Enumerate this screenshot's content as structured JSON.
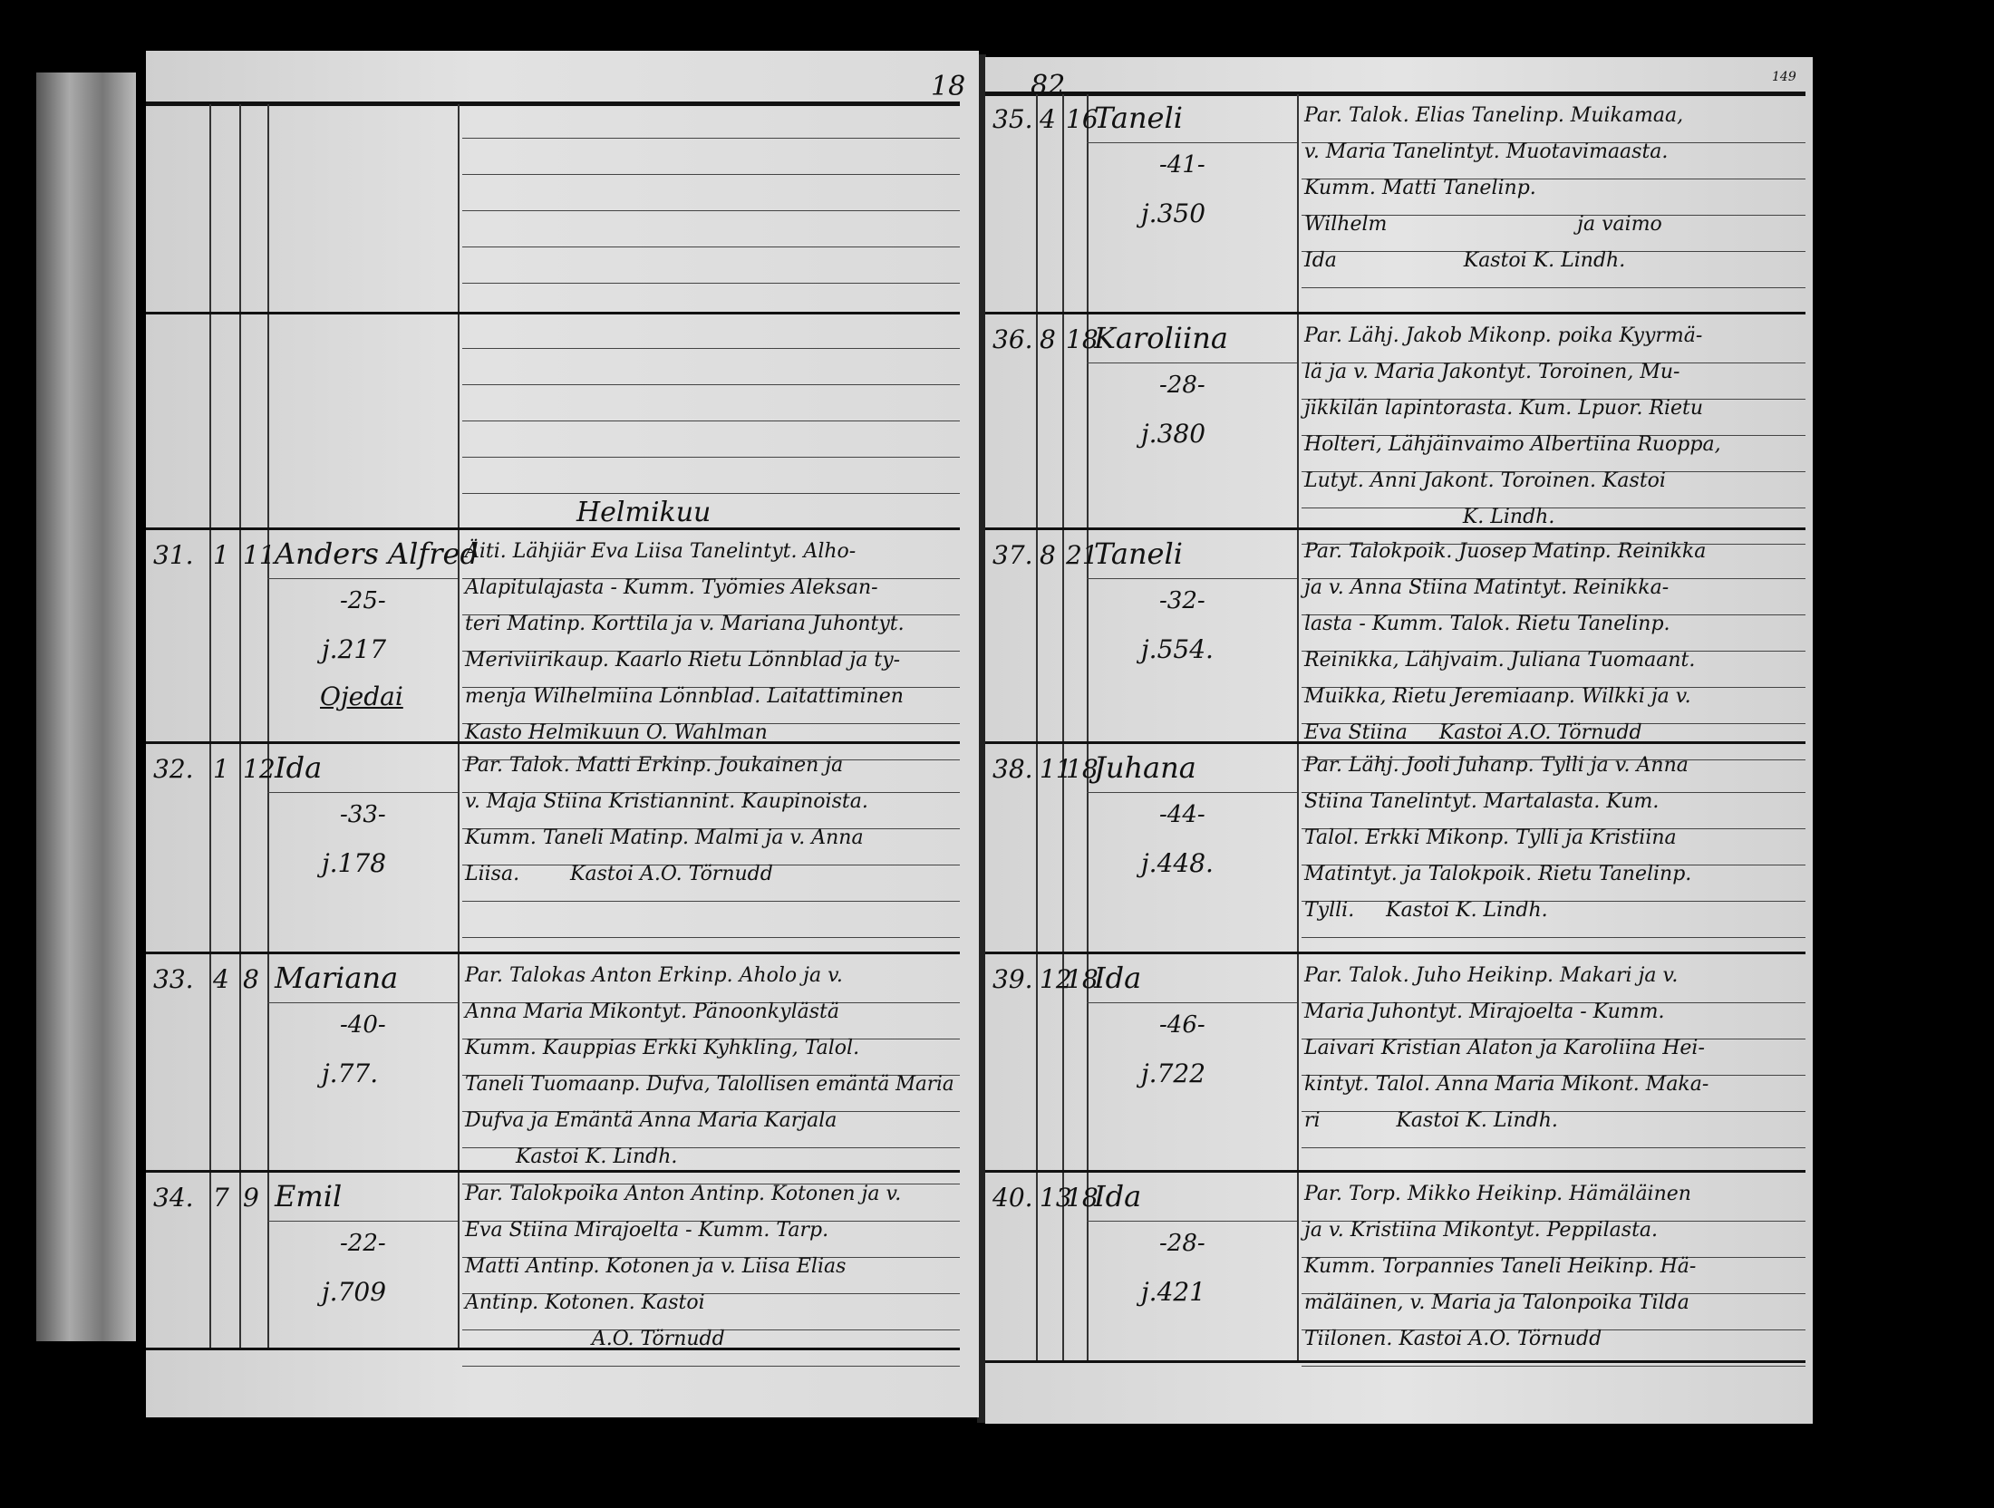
{
  "left_page": {
    "page_number": "18",
    "month_heading": "Helmikuu",
    "entries": [
      {
        "no": "31.",
        "month": "1",
        "day": "11",
        "name": "Anders Alfred",
        "age": "-25-",
        "folio": "j.217",
        "extra": "Ojedai",
        "notes": [
          "Äiti. Lähjiär Eva Liisa Tanelintyt. Alho-",
          "Alapitulajasta - Kumm. Työmies Aleksan-",
          "teri Matinp. Korttila ja v. Mariana Juhontyt.",
          "Meriviirikaup. Kaarlo Rietu Lönnblad ja ty-",
          "menja Wilhelmiina Lönnblad. Laitattiminen",
          "Kasto Helmikuun O. Wahlman"
        ]
      },
      {
        "no": "32.",
        "month": "1",
        "day": "12",
        "name": "Ida",
        "age": "-33-",
        "folio": "j.178",
        "extra": "",
        "notes": [
          "Par. Talok. Matti Erkinp. Joukainen ja",
          "v. Maja Stiina Kristiannint. Kaupinoista.",
          "Kumm. Taneli Matinp. Malmi ja v. Anna",
          "Liisa.        Kastoi A.O. Törnudd"
        ]
      },
      {
        "no": "33.",
        "month": "4",
        "day": "8",
        "name": "Mariana",
        "age": "-40-",
        "folio": "j.77.",
        "extra": "",
        "notes": [
          "Par. Talokas Anton Erkinp. Aholo ja v.",
          "Anna Maria Mikontyt. Pänoonkylästä",
          "Kumm. Kauppias Erkki Kyhkling, Talol.",
          "Taneli Tuomaanp. Dufva, Talollisen emäntä Maria",
          "Dufva ja Emäntä Anna Maria Karjala",
          "        Kastoi K. Lindh."
        ]
      },
      {
        "no": "34.",
        "month": "7",
        "day": "9",
        "name": "Emil",
        "age": "-22-",
        "folio": "j.709",
        "extra": "",
        "notes": [
          "Par. Talokpoika Anton Antinp. Kotonen ja v.",
          "Eva Stiina Mirajoelta - Kumm. Tarp.",
          "Matti Antinp. Kotonen ja v. Liisa Elias",
          "Antinp. Kotonen. Kastoi",
          "                    A.O. Törnudd"
        ]
      }
    ]
  },
  "right_page": {
    "page_number": "82",
    "corner_number": "149",
    "entries": [
      {
        "no": "35.",
        "month": "4",
        "day": "16",
        "name": "Taneli",
        "age": "-41-",
        "folio": "j.350",
        "extra": "",
        "notes": [
          "Par. Talok. Elias Tanelinp. Muikamaa,",
          "v. Maria Tanelintyt. Muotavimaasta.",
          "Kumm. Matti Tanelinp.",
          "Wilhelm                              ja vaimo",
          "Ida                    Kastoi K. Lindh."
        ]
      },
      {
        "no": "36.",
        "month": "8",
        "day": "18",
        "name": "Karoliina",
        "age": "-28-",
        "folio": "j.380",
        "extra": "",
        "notes": [
          "Par. Lähj. Jakob Mikonp. poika Kyyrmä-",
          "lä ja v. Maria Jakontyt. Toroinen, Mu-",
          "jikkilän lapintorasta. Kum. Lpuor. Rietu",
          "Holteri, Lähjäinvaimo Albertiina Ruoppa,",
          "Lutyt. Anni Jakont. Toroinen. Kastoi",
          "                         K. Lindh."
        ]
      },
      {
        "no": "37.",
        "month": "8",
        "day": "21",
        "name": "Taneli",
        "age": "-32-",
        "folio": "j.554.",
        "extra": "",
        "notes": [
          "Par. Talokpoik. Juosep Matinp. Reinikka",
          "ja v. Anna Stiina Matintyt. Reinikka-",
          "lasta - Kumm. Talok. Rietu Tanelinp.",
          "Reinikka, Lähjvaim. Juliana Tuomaant.",
          "Muikka, Rietu Jeremiaanp. Wilkki ja v.",
          "Eva Stiina     Kastoi A.O. Törnudd"
        ]
      },
      {
        "no": "38.",
        "month": "11",
        "day": "18",
        "name": "Juhana",
        "age": "-44-",
        "folio": "j.448.",
        "extra": "",
        "notes": [
          "Par. Lähj. Jooli Juhanp. Tylli ja v. Anna",
          "Stiina Tanelintyt. Martalasta. Kum.",
          "Talol. Erkki Mikonp. Tylli ja Kristiina",
          "Matintyt. ja Talokpoik. Rietu Tanelinp.",
          "Tylli.     Kastoi K. Lindh."
        ]
      },
      {
        "no": "39.",
        "month": "12",
        "day": "18",
        "name": "Ida",
        "age": "-46-",
        "folio": "j.722",
        "extra": "",
        "notes": [
          "Par. Talok. Juho Heikinp. Makari ja v.",
          "Maria Juhontyt. Mirajoelta - Kumm.",
          "Laivari Kristian Alaton ja Karoliina Hei-",
          "kintyt. Talol. Anna Maria Mikont. Maka-",
          "ri            Kastoi K. Lindh."
        ]
      },
      {
        "no": "40.",
        "month": "13",
        "day": "18",
        "name": "Ida",
        "age": "-28-",
        "folio": "j.421",
        "extra": "",
        "notes": [
          "Par. Torp. Mikko Heikinp. Hämäläinen",
          "ja v. Kristiina Mikontyt. Peppilasta.",
          "Kumm. Torpannies Taneli Heikinp. Hä-",
          "mäläinen, v. Maria ja Talonpoika Tilda",
          "Tiilonen. Kastoi A.O. Törnudd"
        ]
      }
    ]
  }
}
